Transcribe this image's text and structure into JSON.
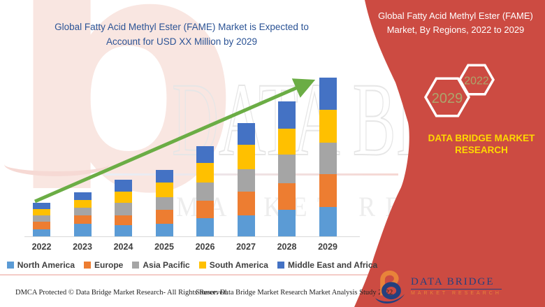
{
  "main_title": {
    "line1": "Global Fatty Acid Methyl Ester (FAME) Market is Expected to",
    "line2": "Account for USD XX Million by 2029",
    "color": "#2b5395"
  },
  "right_banner": {
    "bg_color": "#cc4b42",
    "title_line1": "Global Fatty Acid Methyl Ester (FAME)",
    "title_line2": "Market, By Regions, 2022 to 2029",
    "hexagons": [
      {
        "year": "2029"
      },
      {
        "year": "2022"
      }
    ],
    "hexagon_text_color": "#aca56c",
    "brand_line1": "DATA BRIDGE MARKET",
    "brand_line2": "RESEARCH",
    "brand_color": "#ffd900"
  },
  "chart_data": {
    "type": "bar",
    "stacked": true,
    "title": "Global Fatty Acid Methyl Ester (FAME) Market, By Regions, 2022 to 2029",
    "xlabel": "",
    "ylabel": "",
    "ylim": [
      0,
      240
    ],
    "grid": false,
    "legend_position": "bottom",
    "trend_arrow": true,
    "categories": [
      "2022",
      "2023",
      "2024",
      "2025",
      "2026",
      "2027",
      "2028",
      "2029"
    ],
    "series": [
      {
        "name": "North America",
        "color": "#5b9bd5",
        "values": [
          10,
          18,
          16,
          18,
          26,
          30,
          38,
          42
        ]
      },
      {
        "name": "Europe",
        "color": "#ed7d31",
        "values": [
          11,
          12,
          14,
          20,
          25,
          34,
          38,
          47
        ]
      },
      {
        "name": "Asia Pacific",
        "color": "#a5a5a5",
        "values": [
          9,
          11,
          18,
          18,
          26,
          32,
          41,
          45
        ]
      },
      {
        "name": "South America",
        "color": "#ffc000",
        "values": [
          9,
          11,
          16,
          21,
          28,
          35,
          37,
          47
        ]
      },
      {
        "name": "Middle East and Africa",
        "color": "#4472c4",
        "values": [
          9,
          11,
          17,
          18,
          24,
          31,
          39,
          46
        ]
      }
    ],
    "totals": [
      48,
      63,
      81,
      95,
      129,
      162,
      193,
      227
    ]
  },
  "watermark": {
    "glyph": "b",
    "line1": "DATA BRIDGE",
    "line2": "MARKET RESEARCH"
  },
  "footer": {
    "dmca": "DMCA Protected © Data Bridge Market Research- All Rights Reserved.",
    "source": "Source: Data Bridge Market Research Market Analysis Study 2022"
  },
  "logo": {
    "name": "DATA BRIDGE",
    "subtitle": "MARKET RESEARCH",
    "navy": "#25407e",
    "orange": "#e8833a"
  }
}
